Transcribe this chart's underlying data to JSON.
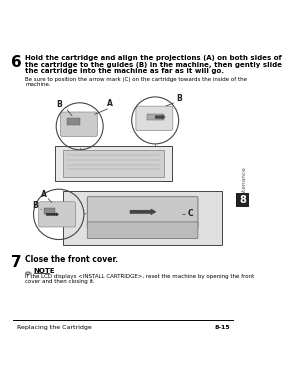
{
  "bg_color": "#ffffff",
  "page_bg": "#ffffff",
  "step6_num": "6",
  "step6_bold": "Hold the cartridge and align the projections (A) on both sides of\nthe cartridge to the guides (B) in the machine, then gently slide\nthe cartridge into the machine as far as it will go.",
  "step6_note": "Be sure to position the arrow mark (C) on the cartridge towards the inside of the\nmachine.",
  "step7_num": "7",
  "step7_bold": "Close the front cover.",
  "note_label": "NOTE",
  "note_text": "If the LCD displays <INSTALL CARTRIDGE>, reset the machine by opening the front\ncover and then closing it.",
  "footer_left": "Replacing the Cartridge",
  "footer_right": "8-15",
  "sidebar_text": "Maintenance",
  "sidebar_num": "8",
  "sidebar_bg": "#222222",
  "sidebar_text_color": "#ffffff",
  "footer_line_color": "#000000",
  "text_color": "#000000",
  "label_A1": "A",
  "label_B1": "B",
  "label_B2": "B",
  "label_A2": "A",
  "label_B3": "B",
  "label_C": "C"
}
